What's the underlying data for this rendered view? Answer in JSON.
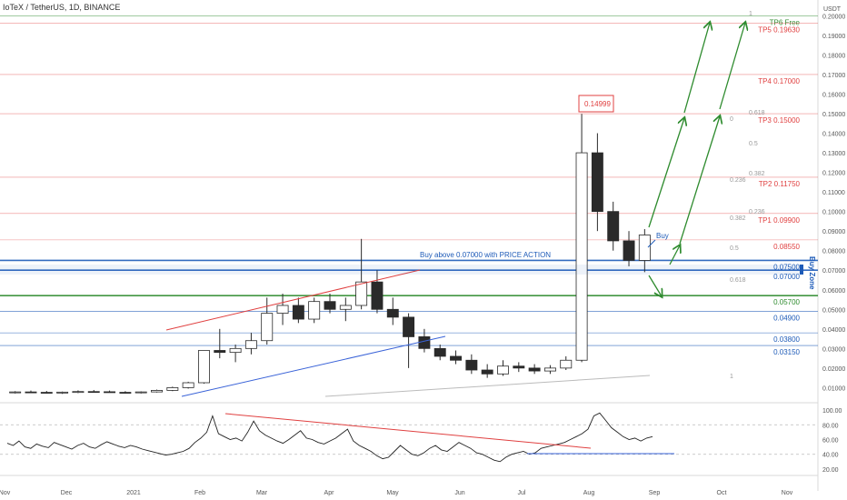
{
  "header": {
    "title": "IoTeX / TetherUS, 1D, BINANCE",
    "currency": "USDT"
  },
  "annotations": {
    "buy_above": "Buy above 0.07000 with PRICE ACTION",
    "buy": "Buy",
    "buy_zone": "Buy Zone",
    "peak_label": "0.14999"
  },
  "chart_data": {
    "type": "candlestick",
    "y_axis": {
      "scale": "linear",
      "range": [
        0.006,
        0.2025
      ],
      "ticks": [
        "0.20000",
        "0.19000",
        "0.18000",
        "0.17000",
        "0.16000",
        "0.15000",
        "0.14000",
        "0.13000",
        "0.12000",
        "0.11000",
        "0.10000",
        "0.09000",
        "0.08000",
        "0.07000",
        "0.06000",
        "0.05000",
        "0.04000",
        "0.03000",
        "0.02000",
        "0.01000"
      ]
    },
    "x_axis": {
      "ticks": [
        "Nov",
        "Dec",
        "2021",
        "Feb",
        "Mar",
        "Apr",
        "May",
        "Jun",
        "Jul",
        "Aug",
        "Sep",
        "Oct",
        "Nov"
      ]
    },
    "levels": [
      {
        "label": "TP6 Free",
        "value": 0.2,
        "color": "#2e8b2e"
      },
      {
        "label": "TP5 0.19630",
        "value": 0.1963,
        "color": "#e04040"
      },
      {
        "label": "TP4 0.17000",
        "value": 0.17,
        "color": "#e04040"
      },
      {
        "label": "TP3 0.15000",
        "value": 0.15,
        "color": "#e04040"
      },
      {
        "label": "TP2 0.11750",
        "value": 0.1175,
        "color": "#e04040"
      },
      {
        "label": "TP1 0.09900",
        "value": 0.099,
        "color": "#e04040"
      },
      {
        "label": "0.08550",
        "value": 0.0855,
        "color": "#e04040"
      },
      {
        "label": "0.07500",
        "value": 0.075,
        "color": "#1e5bb8"
      },
      {
        "label": "0.07000",
        "value": 0.07,
        "color": "#1e5bb8"
      },
      {
        "label": "0.05700",
        "value": 0.057,
        "color": "#2e8b2e"
      },
      {
        "label": "0.04900",
        "value": 0.049,
        "color": "#1e5bb8"
      },
      {
        "label": "0.03800",
        "value": 0.038,
        "color": "#1e5bb8"
      },
      {
        "label": "0.03150",
        "value": 0.0315,
        "color": "#1e5bb8"
      }
    ],
    "fib_labels": [
      "1",
      "0.618",
      "0",
      "0.5",
      "0.382",
      "0.236",
      "0.236",
      "0.382",
      "0.5",
      "0.618",
      "1"
    ],
    "ohlc_weekly": [
      [
        0.0075,
        0.0082,
        0.007,
        0.0078
      ],
      [
        0.0078,
        0.0085,
        0.0072,
        0.0076
      ],
      [
        0.0076,
        0.0083,
        0.007,
        0.0074
      ],
      [
        0.0074,
        0.008,
        0.0068,
        0.0077
      ],
      [
        0.0077,
        0.0086,
        0.0072,
        0.008
      ],
      [
        0.008,
        0.0088,
        0.0075,
        0.0079
      ],
      [
        0.0079,
        0.0085,
        0.0074,
        0.0076
      ],
      [
        0.0076,
        0.0082,
        0.007,
        0.0075
      ],
      [
        0.0075,
        0.0081,
        0.007,
        0.0078
      ],
      [
        0.0078,
        0.009,
        0.0075,
        0.0086
      ],
      [
        0.0086,
        0.0105,
        0.0082,
        0.01
      ],
      [
        0.01,
        0.013,
        0.0095,
        0.0125
      ],
      [
        0.0125,
        0.02,
        0.012,
        0.029
      ],
      [
        0.029,
        0.04,
        0.025,
        0.028
      ],
      [
        0.028,
        0.032,
        0.023,
        0.03
      ],
      [
        0.03,
        0.038,
        0.027,
        0.034
      ],
      [
        0.034,
        0.056,
        0.032,
        0.048
      ],
      [
        0.048,
        0.058,
        0.042,
        0.052
      ],
      [
        0.052,
        0.056,
        0.043,
        0.045
      ],
      [
        0.045,
        0.056,
        0.043,
        0.054
      ],
      [
        0.054,
        0.058,
        0.048,
        0.05
      ],
      [
        0.05,
        0.056,
        0.044,
        0.052
      ],
      [
        0.052,
        0.086,
        0.05,
        0.064
      ],
      [
        0.064,
        0.07,
        0.048,
        0.05
      ],
      [
        0.05,
        0.056,
        0.042,
        0.046
      ],
      [
        0.046,
        0.048,
        0.02,
        0.036
      ],
      [
        0.036,
        0.04,
        0.028,
        0.03
      ],
      [
        0.03,
        0.032,
        0.024,
        0.026
      ],
      [
        0.026,
        0.029,
        0.022,
        0.024
      ],
      [
        0.024,
        0.027,
        0.017,
        0.019
      ],
      [
        0.019,
        0.022,
        0.015,
        0.017
      ],
      [
        0.017,
        0.024,
        0.016,
        0.021
      ],
      [
        0.021,
        0.023,
        0.018,
        0.02
      ],
      [
        0.02,
        0.022,
        0.017,
        0.0185
      ],
      [
        0.0185,
        0.0215,
        0.017,
        0.02
      ],
      [
        0.02,
        0.026,
        0.019,
        0.024
      ],
      [
        0.024,
        0.1499,
        0.023,
        0.13
      ],
      [
        0.13,
        0.14,
        0.09,
        0.1
      ],
      [
        0.1,
        0.105,
        0.08,
        0.085
      ],
      [
        0.085,
        0.09,
        0.072,
        0.075
      ],
      [
        0.075,
        0.091,
        0.069,
        0.088
      ]
    ],
    "rsi": {
      "ticks": [
        "100.00",
        "80.00",
        "60.00",
        "40.00",
        "20.00"
      ],
      "range": [
        15,
        105
      ],
      "reference_level": 50,
      "values": [
        55,
        52,
        58,
        50,
        48,
        54,
        51,
        49,
        56,
        53,
        50,
        47,
        52,
        55,
        50,
        48,
        53,
        57,
        54,
        51,
        49,
        52,
        50,
        47,
        45,
        43,
        41,
        39,
        40,
        42,
        44,
        48,
        56,
        62,
        70,
        92,
        68,
        64,
        60,
        62,
        58,
        70,
        85,
        72,
        66,
        62,
        58,
        55,
        60,
        66,
        72,
        62,
        60,
        56,
        54,
        58,
        62,
        68,
        74,
        58,
        52,
        48,
        44,
        38,
        34,
        36,
        44,
        52,
        46,
        40,
        38,
        42,
        48,
        52,
        46,
        44,
        50,
        56,
        52,
        48,
        42,
        40,
        36,
        32,
        30,
        36,
        40,
        42,
        44,
        40,
        42,
        48,
        50,
        52,
        54,
        56,
        60,
        64,
        68,
        74,
        92,
        96,
        86,
        76,
        70,
        64,
        60,
        62,
        58,
        62,
        64
      ]
    }
  }
}
